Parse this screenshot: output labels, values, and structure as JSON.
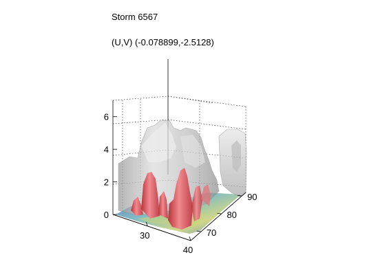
{
  "header": {
    "title": "Storm 6567",
    "subtitle": "(U,V) (-0.078899,-2.5128)"
  },
  "chart_data": {
    "type": "isosurface-3d",
    "title": "Storm 6567",
    "subtitle": "(U,V) (-0.078899,-2.5128)",
    "xlabel": "",
    "ylabel": "",
    "zlabel": "",
    "x_ticks": [
      30,
      40
    ],
    "y_ticks": [
      70,
      80,
      90
    ],
    "z_ticks": [
      0,
      2,
      4,
      6
    ],
    "x_range": [
      22,
      40
    ],
    "y_range": [
      65,
      92
    ],
    "z_range": [
      0,
      7
    ],
    "grid": true,
    "surfaces": [
      {
        "color": "#b8b8b8",
        "style": "translucent-grey",
        "max_height": 6.2
      },
      {
        "color": "#d94a50",
        "style": "red",
        "max_height": 3.0
      },
      {
        "color": "#4a78c8",
        "style": "blue-floor",
        "max_height": 0.3
      }
    ]
  }
}
